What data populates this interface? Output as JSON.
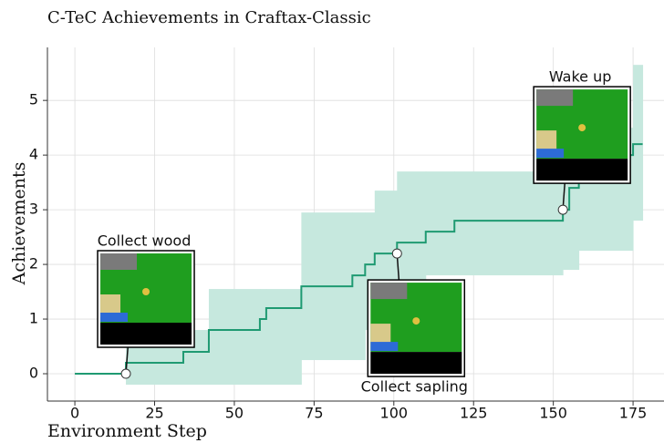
{
  "chart_data": {
    "type": "step-line",
    "title": "C-TeC Achievements in Craftax-Classic",
    "xlabel": "Environment Step",
    "ylabel": "Achievements",
    "x": [
      0,
      16,
      34,
      42,
      58,
      60,
      71,
      87,
      91,
      94,
      101,
      110,
      119,
      153,
      155,
      158,
      161,
      164,
      175,
      178
    ],
    "series": [
      {
        "color": "#1f9a72",
        "values": [
          0,
          0.2,
          0.4,
          0.8,
          1.0,
          1.2,
          1.6,
          1.8,
          2.0,
          2.2,
          2.4,
          2.6,
          2.8,
          3.0,
          3.4,
          3.6,
          3.8,
          4.0,
          4.2,
          4.2
        ]
      }
    ],
    "band": {
      "color": "#c6e8de",
      "upper": [
        0,
        0.8,
        0.8,
        1.55,
        1.55,
        1.55,
        2.95,
        2.95,
        2.95,
        3.35,
        3.7,
        3.7,
        3.7,
        4.2,
        4.2,
        4.5,
        4.5,
        4.5,
        5.65,
        5.65
      ],
      "lower": [
        0,
        -0.2,
        -0.2,
        -0.2,
        -0.2,
        -0.2,
        0.25,
        0.25,
        0.8,
        0.8,
        1.2,
        1.8,
        1.8,
        1.9,
        1.9,
        2.25,
        2.25,
        2.25,
        2.8,
        2.8
      ]
    },
    "annotations": [
      {
        "text": "Collect wood",
        "x": 16,
        "y": 0
      },
      {
        "text": "Collect sapling",
        "x": 101,
        "y": 2.2
      },
      {
        "text": "Wake up",
        "x": 153,
        "y": 3.0
      }
    ],
    "xlim": [
      -8.6,
      184.7
    ],
    "ylim": [
      -0.5,
      5.97
    ],
    "xticks": [
      0,
      25,
      50,
      75,
      100,
      125,
      150,
      175
    ],
    "yticks": [
      0,
      1,
      2,
      3,
      4,
      5
    ],
    "grid": true
  }
}
